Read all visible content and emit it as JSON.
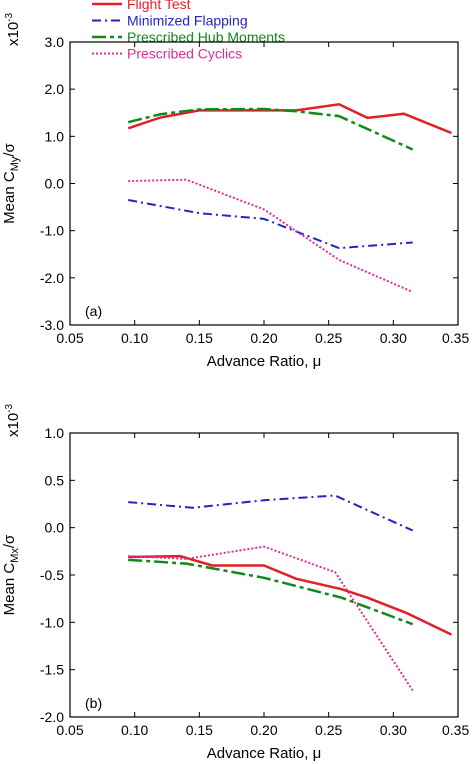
{
  "legend": {
    "placement": "top",
    "entries": [
      {
        "name": "Flight Test",
        "color": "#e21f26",
        "dash": "solid",
        "width": 2.5
      },
      {
        "name": "Minimized Flapping",
        "color": "#2323c8",
        "dash": "dashdot",
        "width": 2
      },
      {
        "name": "Prescribed Hub Moments",
        "color": "#11891b",
        "dash": "longdash",
        "width": 2.5
      },
      {
        "name": "Prescribed Cyclics",
        "color": "#e8289a",
        "dash": "dotted",
        "width": 2
      }
    ]
  },
  "chart_data": [
    {
      "type": "line",
      "panel_label": "(a)",
      "scale_label": {
        "base": "x10",
        "exponent": "-3"
      },
      "ylabel": {
        "main": "Mean C",
        "sub": "My",
        "tail": "/σ"
      },
      "xlabel": "Advance Ratio, μ",
      "xlim": [
        0.05,
        0.35
      ],
      "ylim": [
        -3.0,
        3.0
      ],
      "xticks": [
        "0.05",
        "0.10",
        "0.15",
        "0.20",
        "0.25",
        "0.30",
        "0.35"
      ],
      "yticks": [
        "-3.0",
        "-2.0",
        "-1.0",
        "0.0",
        "1.0",
        "2.0",
        "3.0"
      ],
      "grid": false,
      "series": [
        {
          "name": "Flight Test",
          "x": [
            0.095,
            0.12,
            0.15,
            0.17,
            0.2,
            0.225,
            0.258,
            0.28,
            0.308,
            0.345
          ],
          "y": [
            1.17,
            1.4,
            1.55,
            1.55,
            1.55,
            1.55,
            1.68,
            1.39,
            1.48,
            1.07
          ]
        },
        {
          "name": "Minimized Flapping",
          "x": [
            0.095,
            0.15,
            0.2,
            0.258,
            0.315
          ],
          "y": [
            -0.35,
            -0.63,
            -0.75,
            -1.37,
            -1.25
          ]
        },
        {
          "name": "Prescribed Hub Moments",
          "x": [
            0.095,
            0.12,
            0.15,
            0.2,
            0.225,
            0.258,
            0.315
          ],
          "y": [
            1.3,
            1.47,
            1.57,
            1.58,
            1.53,
            1.43,
            0.72
          ]
        },
        {
          "name": "Prescribed Cyclics",
          "x": [
            0.095,
            0.14,
            0.2,
            0.258,
            0.315
          ],
          "y": [
            0.05,
            0.08,
            -0.55,
            -1.62,
            -2.3
          ]
        }
      ]
    },
    {
      "type": "line",
      "panel_label": "(b)",
      "scale_label": {
        "base": "x10",
        "exponent": "-3"
      },
      "ylabel": {
        "main": "Mean C",
        "sub": "Mx",
        "tail": "/σ"
      },
      "xlabel": "Advance Ratio, μ",
      "xlim": [
        0.05,
        0.35
      ],
      "ylim": [
        -2.0,
        1.0
      ],
      "xticks": [
        "0.05",
        "0.10",
        "0.15",
        "0.20",
        "0.25",
        "0.30",
        "0.35"
      ],
      "yticks": [
        "-2.0",
        "-1.5",
        "-1.0",
        "-0.5",
        "0.0",
        "0.5",
        "1.0"
      ],
      "grid": false,
      "series": [
        {
          "name": "Flight Test",
          "x": [
            0.095,
            0.135,
            0.16,
            0.2,
            0.225,
            0.26,
            0.28,
            0.31,
            0.345
          ],
          "y": [
            -0.31,
            -0.3,
            -0.4,
            -0.4,
            -0.54,
            -0.65,
            -0.74,
            -0.9,
            -1.13
          ]
        },
        {
          "name": "Minimized Flapping",
          "x": [
            0.095,
            0.145,
            0.2,
            0.255,
            0.315
          ],
          "y": [
            0.27,
            0.21,
            0.29,
            0.34,
            -0.03
          ]
        },
        {
          "name": "Prescribed Hub Moments",
          "x": [
            0.095,
            0.14,
            0.2,
            0.26,
            0.315
          ],
          "y": [
            -0.34,
            -0.38,
            -0.53,
            -0.74,
            -1.02
          ]
        },
        {
          "name": "Prescribed Cyclics",
          "x": [
            0.095,
            0.14,
            0.2,
            0.255,
            0.315
          ],
          "y": [
            -0.3,
            -0.33,
            -0.2,
            -0.47,
            -1.72
          ]
        }
      ]
    }
  ]
}
